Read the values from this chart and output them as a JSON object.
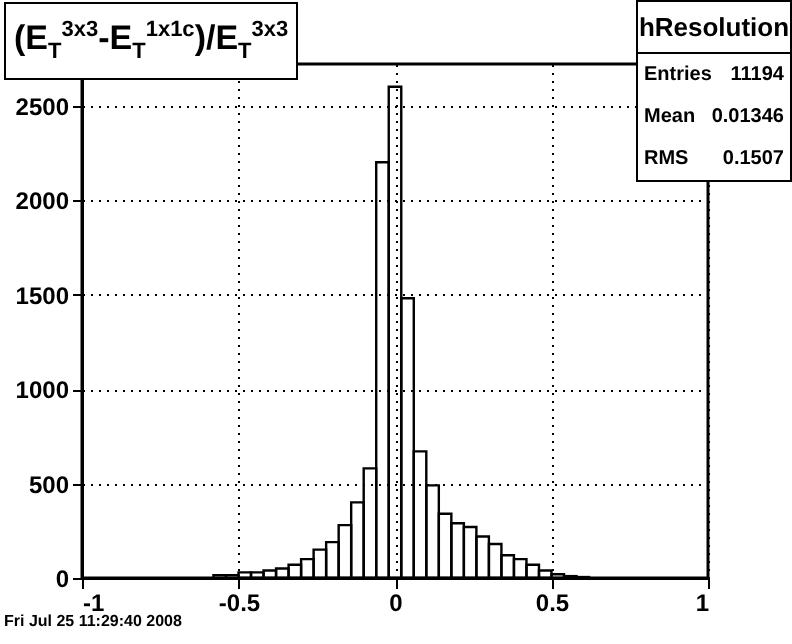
{
  "chart_data": {
    "type": "histogram",
    "title": "(E$_{T}$$^{3x3}$-E$_{T}$$^{1x1c}$)/E$_{T}$$^{3x3}$",
    "bins": [
      -0.58,
      -0.54,
      -0.5,
      -0.46,
      -0.42,
      -0.38,
      -0.34,
      -0.3,
      -0.26,
      -0.22,
      -0.18,
      -0.14,
      -0.1,
      -0.06,
      -0.02,
      0.02,
      0.06,
      0.1,
      0.14,
      0.18,
      0.22,
      0.26,
      0.3,
      0.34,
      0.38,
      0.42,
      0.46,
      0.5,
      0.54,
      0.58,
      0.62
    ],
    "values": [
      15,
      15,
      30,
      30,
      40,
      50,
      70,
      100,
      150,
      190,
      280,
      400,
      580,
      2200,
      2600,
      1480,
      670,
      490,
      340,
      290,
      270,
      220,
      180,
      120,
      100,
      70,
      40,
      20,
      10,
      5
    ],
    "color": "#000000",
    "xlim": [
      -1,
      1
    ],
    "xticks": [
      -1,
      -0.5,
      0,
      0.5,
      1
    ],
    "ylim": [
      0,
      2720
    ],
    "yticks": [
      0,
      500,
      1000,
      1500,
      2000,
      2500
    ],
    "grid": true,
    "annotations": [
      "hResolution",
      "Entries",
      "11194",
      "Mean",
      "0.01346",
      "RMS",
      "0.1507",
      "Fri Jul 25 11:29:40 2008"
    ]
  }
}
